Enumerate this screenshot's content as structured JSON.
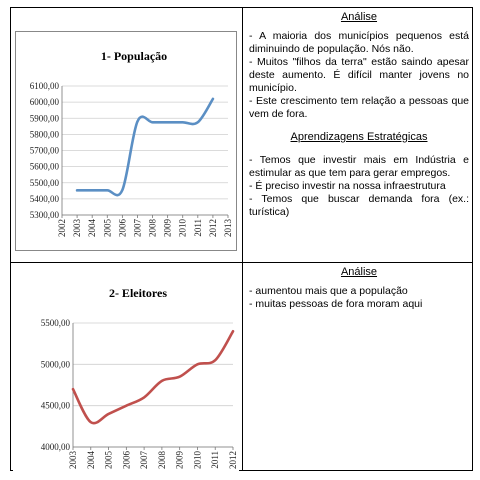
{
  "chart_data": [
    {
      "type": "line",
      "title": "1- População",
      "x": [
        "2002",
        "2003",
        "2004",
        "2005",
        "2006",
        "2007",
        "2008",
        "2009",
        "2010",
        "2011",
        "2012",
        "2013"
      ],
      "series": [
        {
          "values": [
            null,
            5453,
            5453,
            5453,
            5455,
            5880,
            5875,
            5875,
            5875,
            5875,
            6020,
            null
          ]
        }
      ],
      "ylim": [
        5300,
        6100
      ],
      "yticks": [
        "5300,00",
        "5400,00",
        "5500,00",
        "5600,00",
        "5700,00",
        "5800,00",
        "5900,00",
        "6000,00",
        "6100,00"
      ],
      "grid": true,
      "line_color": "#5b8fc4"
    },
    {
      "type": "line",
      "title": "2- Eleitores",
      "x": [
        "2003",
        "2004",
        "2005",
        "2006",
        "2007",
        "2008",
        "2009",
        "2010",
        "2011",
        "2012"
      ],
      "series": [
        {
          "values": [
            4700,
            4300,
            4400,
            4500,
            4600,
            4800,
            4850,
            5000,
            5050,
            5400
          ]
        }
      ],
      "ylim": [
        4000,
        5500
      ],
      "yticks": [
        "4000,00",
        "4500,00",
        "5000,00",
        "5500,00"
      ],
      "grid": true,
      "line_color": "#c0504d"
    }
  ],
  "panel1": {
    "heading": "Análise",
    "bullets": [
      "- A maioria dos municípios pequenos está diminuindo de população. Nós não.",
      "- Muitos \"filhos da terra\" estão saindo apesar deste aumento. É difícil manter jovens no município.",
      "- Este crescimento tem relação a pessoas que vem de fora."
    ],
    "heading2": "Aprendizagens Estratégicas",
    "bullets2": [
      "- Temos que investir mais em Indústria e estimular as que tem para gerar empregos.",
      "- É preciso investir na nossa infraestrutura",
      "- Temos que buscar demanda fora (ex.: turística)"
    ]
  },
  "panel2": {
    "heading": "Análise",
    "bullets": [
      "- aumentou mais que a população",
      "- muitas pessoas de fora moram aqui"
    ]
  }
}
